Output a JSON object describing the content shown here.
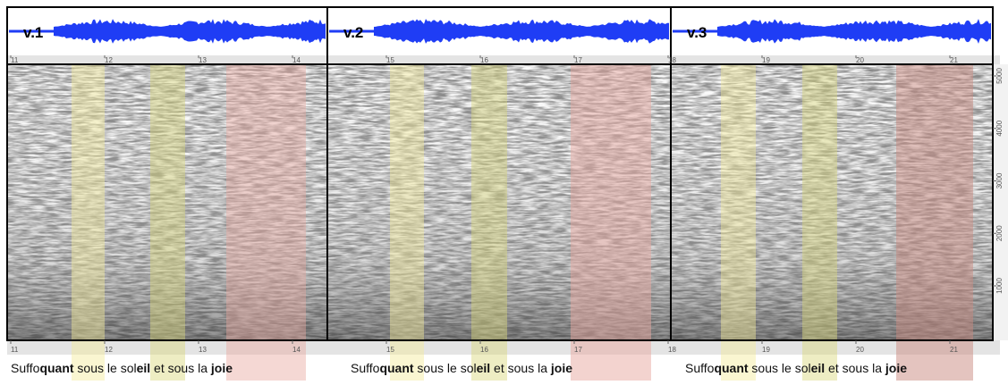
{
  "panels": [
    {
      "label": "v.1"
    },
    {
      "label": "v.2"
    },
    {
      "label": "v.3"
    }
  ],
  "top_ticks": [
    11,
    12,
    13,
    14,
    15,
    16,
    17,
    18,
    19,
    20,
    21
  ],
  "bottom_ticks": [
    11,
    12,
    13,
    14,
    15,
    16,
    17,
    18,
    19,
    20,
    21
  ],
  "freq_ticks": [
    1000,
    2000,
    3000,
    4000,
    5000
  ],
  "captions": [
    {
      "parts": [
        {
          "text": "Suffo",
          "bold": false
        },
        {
          "text": "quant",
          "bold": true
        },
        {
          "text": " sous le ",
          "bold": false
        },
        {
          "text": "sol",
          "bold": false
        },
        {
          "text": "eil",
          "bold": true
        },
        {
          "text": " et sous la ",
          "bold": false
        },
        {
          "text": "joie",
          "bold": true
        }
      ]
    },
    {
      "parts": [
        {
          "text": "Suffo",
          "bold": false
        },
        {
          "text": "quant",
          "bold": true
        },
        {
          "text": " sous le ",
          "bold": false
        },
        {
          "text": "sol",
          "bold": false
        },
        {
          "text": "eil",
          "bold": true
        },
        {
          "text": " et sous la ",
          "bold": false
        },
        {
          "text": "joie",
          "bold": true
        }
      ]
    },
    {
      "parts": [
        {
          "text": "Suffo",
          "bold": false
        },
        {
          "text": "quant",
          "bold": true
        },
        {
          "text": " sous le ",
          "bold": false
        },
        {
          "text": "sol",
          "bold": false
        },
        {
          "text": "eil",
          "bold": true
        },
        {
          "text": " et sous la ",
          "bold": false
        },
        {
          "text": "joie",
          "bold": true
        }
      ]
    }
  ]
}
